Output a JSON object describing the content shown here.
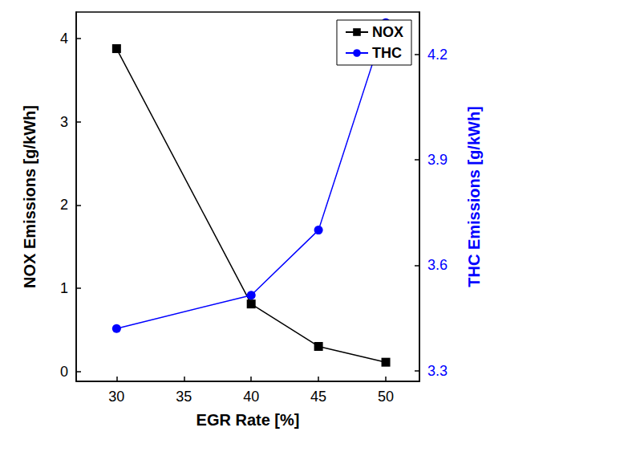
{
  "chart_data": {
    "type": "line",
    "x_label": "EGR Rate [%]",
    "y_label": "NOX Emissions [g/kWh]",
    "y2_label": "THC Emissions [g/kWh]",
    "x": [
      30,
      40,
      45,
      50
    ],
    "xlim": [
      27,
      52.5
    ],
    "xticks": [
      30,
      35,
      40,
      45,
      50
    ],
    "ylim": [
      -0.12,
      4.32
    ],
    "yticks": [
      0,
      1,
      2,
      3,
      4
    ],
    "y2lim": [
      3.27,
      4.32
    ],
    "y2ticks": [
      3.3,
      3.6,
      3.9,
      4.2
    ],
    "grid": false,
    "legend": "upper right",
    "series": [
      {
        "name": "NOX",
        "color": "#000000",
        "marker": "square",
        "values": [
          3.88,
          0.81,
          0.3,
          0.11
        ]
      },
      {
        "name": "THC",
        "color": "#0000ff",
        "marker": "circle",
        "axis": "y2",
        "values": [
          3.42,
          3.515,
          3.7,
          4.29
        ]
      }
    ]
  }
}
